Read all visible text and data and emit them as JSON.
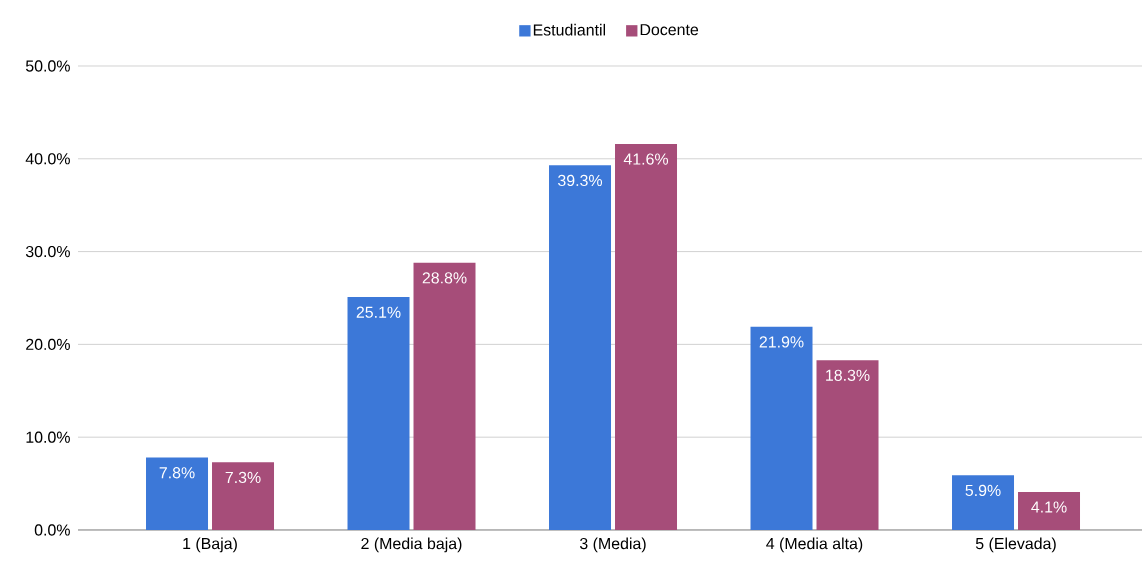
{
  "chart_data": {
    "type": "bar",
    "categories": [
      "1 (Baja)",
      "2 (Media baja)",
      "3 (Media)",
      "4 (Media alta)",
      "5 (Elevada)"
    ],
    "series": [
      {
        "name": "Estudiantil",
        "color": "#3c78d8",
        "values": [
          7.8,
          25.1,
          39.3,
          21.9,
          5.9
        ],
        "value_labels": [
          "7.8%",
          "25.1%",
          "39.3%",
          "21.9%",
          "5.9%"
        ]
      },
      {
        "name": "Docente",
        "color": "#a64d79",
        "values": [
          7.3,
          28.8,
          41.6,
          18.3,
          4.1
        ],
        "value_labels": [
          "7.3%",
          "28.8%",
          "41.6%",
          "18.3%",
          "4.1%"
        ]
      }
    ],
    "ylim": [
      0,
      50
    ],
    "yticks": [
      {
        "value": 0,
        "label": "0.0%"
      },
      {
        "value": 10,
        "label": "10.0%"
      },
      {
        "value": 20,
        "label": "20.0%"
      },
      {
        "value": 30,
        "label": "30.0%"
      },
      {
        "value": 40,
        "label": "40.0%"
      },
      {
        "value": 50,
        "label": "50.0%"
      }
    ],
    "grid": "y",
    "legend": "top"
  }
}
